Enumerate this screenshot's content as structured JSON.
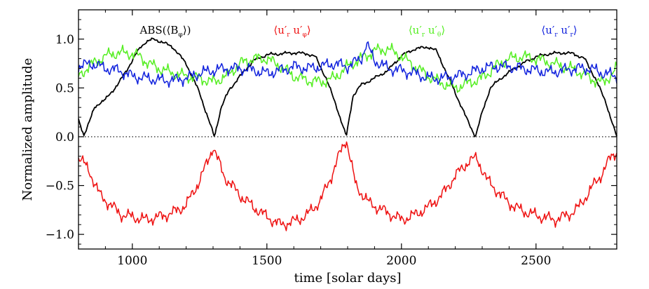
{
  "chart_data": {
    "type": "line",
    "title": "",
    "xlabel": "time [solar days]",
    "ylabel": "Normalized amplitude",
    "xlim": [
      800,
      2800
    ],
    "ylim": [
      -1.15,
      1.3
    ],
    "xticks": [
      1000,
      1500,
      2000,
      2500
    ],
    "xtick_labels": [
      "1000",
      "1500",
      "2000",
      "2500"
    ],
    "yticks": [
      -1.0,
      -0.5,
      0.0,
      0.5,
      1.0
    ],
    "ytick_labels": [
      "−1.0",
      "−0.5",
      "0.0",
      "0.5",
      "1.0"
    ],
    "zero_line": "dotted",
    "grid": false,
    "legend_placement": "top, in a row",
    "series": [
      {
        "name": "ABS(⟨Bφ⟩)",
        "legend_main": "ABS(⟨B",
        "legend_sub": "φ",
        "legend_tail": "⟩)",
        "color": "#000000",
        "x": [
          800,
          820,
          840,
          860,
          880,
          900,
          950,
          1000,
          1030,
          1050,
          1080,
          1110,
          1150,
          1200,
          1250,
          1280,
          1305,
          1330,
          1360,
          1400,
          1450,
          1500,
          1550,
          1600,
          1650,
          1680,
          1720,
          1760,
          1795,
          1820,
          1850,
          1900,
          1950,
          2000,
          2050,
          2100,
          2130,
          2160,
          2200,
          2240,
          2275,
          2300,
          2330,
          2370,
          2420,
          2470,
          2500,
          2550,
          2600,
          2640,
          2680,
          2720,
          2760,
          2790,
          2800
        ],
        "values": [
          0.17,
          0.02,
          0.15,
          0.3,
          0.35,
          0.38,
          0.55,
          0.78,
          0.92,
          0.97,
          1.0,
          0.97,
          0.92,
          0.75,
          0.45,
          0.2,
          0.0,
          0.3,
          0.48,
          0.62,
          0.78,
          0.84,
          0.85,
          0.86,
          0.85,
          0.82,
          0.6,
          0.3,
          0.0,
          0.42,
          0.53,
          0.6,
          0.68,
          0.83,
          0.9,
          0.92,
          0.88,
          0.7,
          0.45,
          0.2,
          0.0,
          0.25,
          0.5,
          0.6,
          0.7,
          0.78,
          0.82,
          0.85,
          0.86,
          0.85,
          0.8,
          0.6,
          0.35,
          0.08,
          0.0
        ]
      },
      {
        "name": "⟨u′r u′φ⟩",
        "legend_main": "⟨u′",
        "legend_sub": "r",
        "legend_mid": " u′",
        "legend_sub2": "φ",
        "legend_tail": "⟩",
        "color": "#ee1111",
        "x": [
          800,
          840,
          880,
          920,
          960,
          1000,
          1050,
          1100,
          1150,
          1200,
          1250,
          1280,
          1300,
          1340,
          1400,
          1450,
          1500,
          1550,
          1600,
          1650,
          1700,
          1740,
          1770,
          1795,
          1830,
          1880,
          1950,
          2000,
          2050,
          2100,
          2150,
          2200,
          2250,
          2280,
          2320,
          2370,
          2420,
          2470,
          2520,
          2570,
          2620,
          2660,
          2700,
          2740,
          2780,
          2800
        ],
        "values": [
          -0.2,
          -0.35,
          -0.6,
          -0.7,
          -0.8,
          -0.82,
          -0.85,
          -0.82,
          -0.78,
          -0.7,
          -0.45,
          -0.25,
          -0.1,
          -0.4,
          -0.6,
          -0.72,
          -0.82,
          -0.9,
          -0.87,
          -0.8,
          -0.65,
          -0.4,
          -0.18,
          -0.02,
          -0.5,
          -0.68,
          -0.78,
          -0.85,
          -0.8,
          -0.72,
          -0.6,
          -0.4,
          -0.25,
          -0.22,
          -0.45,
          -0.6,
          -0.72,
          -0.78,
          -0.82,
          -0.85,
          -0.8,
          -0.72,
          -0.55,
          -0.4,
          -0.2,
          -0.15
        ]
      },
      {
        "name": "⟨u′r u′θ⟩",
        "legend_main": "⟨u′",
        "legend_sub": "r",
        "legend_mid": " u′",
        "legend_sub2": "θ",
        "legend_tail": "⟩",
        "color": "#55ee22",
        "x": [
          800,
          830,
          870,
          920,
          970,
          1000,
          1030,
          1060,
          1100,
          1150,
          1200,
          1250,
          1300,
          1350,
          1400,
          1450,
          1500,
          1550,
          1600,
          1650,
          1700,
          1750,
          1800,
          1850,
          1900,
          1950,
          2000,
          2050,
          2100,
          2150,
          2200,
          2250,
          2300,
          2350,
          2400,
          2450,
          2500,
          2550,
          2600,
          2650,
          2700,
          2750,
          2800
        ],
        "values": [
          0.62,
          0.7,
          0.78,
          0.85,
          0.86,
          0.85,
          0.82,
          0.75,
          0.7,
          0.65,
          0.62,
          0.6,
          0.56,
          0.62,
          0.75,
          0.8,
          0.8,
          0.72,
          0.62,
          0.58,
          0.56,
          0.6,
          0.72,
          0.8,
          0.88,
          0.9,
          0.82,
          0.72,
          0.62,
          0.55,
          0.5,
          0.55,
          0.6,
          0.72,
          0.8,
          0.82,
          0.8,
          0.76,
          0.72,
          0.68,
          0.6,
          0.55,
          0.7
        ]
      },
      {
        "name": "⟨u′r u′r⟩",
        "legend_main": "⟨u′",
        "legend_sub": "r",
        "legend_mid": " u′",
        "legend_sub2": "r",
        "legend_tail": "⟩",
        "color": "#1122dd",
        "x": [
          800,
          850,
          900,
          950,
          1000,
          1050,
          1100,
          1150,
          1200,
          1250,
          1300,
          1350,
          1400,
          1450,
          1500,
          1550,
          1600,
          1650,
          1700,
          1750,
          1800,
          1850,
          1870,
          1900,
          1950,
          2000,
          2050,
          2100,
          2150,
          2200,
          2250,
          2300,
          2350,
          2400,
          2450,
          2500,
          2550,
          2600,
          2650,
          2700,
          2750,
          2800
        ],
        "values": [
          0.72,
          0.75,
          0.7,
          0.68,
          0.62,
          0.6,
          0.58,
          0.58,
          0.6,
          0.65,
          0.68,
          0.7,
          0.7,
          0.68,
          0.65,
          0.68,
          0.72,
          0.7,
          0.72,
          0.75,
          0.72,
          0.8,
          0.95,
          0.78,
          0.7,
          0.68,
          0.65,
          0.6,
          0.6,
          0.62,
          0.65,
          0.7,
          0.72,
          0.72,
          0.7,
          0.68,
          0.66,
          0.68,
          0.7,
          0.7,
          0.65,
          0.62
        ]
      }
    ]
  }
}
